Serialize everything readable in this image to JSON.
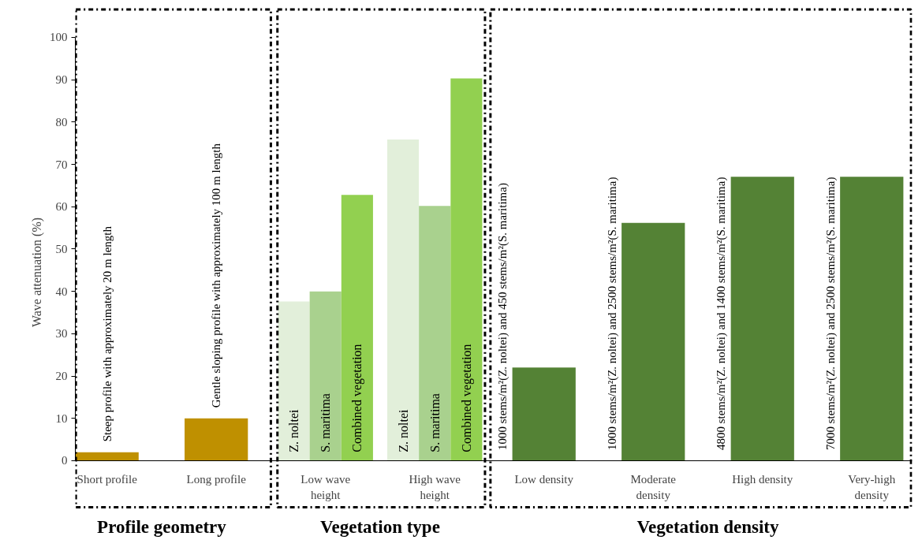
{
  "chart_data": {
    "type": "bar",
    "ylabel": "Wave attenuation (%)",
    "categories": [
      "Short profile",
      "Long profile",
      "Low wave height",
      "High wave height",
      "Low density",
      "Moderate density",
      "High density",
      "Very-high density"
    ],
    "series": [
      {
        "color": "#bf9000",
        "values": [
          2,
          10,
          null,
          null,
          null,
          null,
          null,
          null
        ]
      },
      {
        "name": "Z. noltei",
        "color": "#e2efda",
        "values": [
          null,
          null,
          37.6,
          75.9,
          null,
          null,
          null,
          null
        ]
      },
      {
        "name": "S. maritima",
        "color": "#a9d18e",
        "values": [
          null,
          null,
          40,
          60.2,
          null,
          null,
          null,
          null
        ]
      },
      {
        "name": "Combined vegetation",
        "color": "#92d050",
        "values": [
          null,
          null,
          62.8,
          90.3,
          null,
          null,
          null,
          null
        ]
      },
      {
        "color": "#548235",
        "values": [
          null,
          null,
          null,
          null,
          22,
          56.2,
          67.1,
          67.1
        ]
      }
    ],
    "ylim": [
      0,
      100
    ],
    "yticks": [
      0,
      10,
      20,
      30,
      40,
      50,
      60,
      70,
      80,
      90,
      100
    ],
    "annotations": [
      "Steep profile with approximately 20 m length",
      "Gentle sloping profile with approximately 100 m length",
      "1000 stems/m²(Z. noltei) and 450 stems/m²(S. maritima)",
      "1000 stems/m²(Z. noltei) and 2500 stems/m²(S. maritima)",
      "4800 stems/m²(Z. noltei) and 1400 stems/m²(S. maritima)",
      "7000 stems/m²(Z. noltei) and 2500 stems/m²(S. maritima)",
      "Profile geometry",
      "Vegetation type",
      "Vegetation density"
    ]
  }
}
